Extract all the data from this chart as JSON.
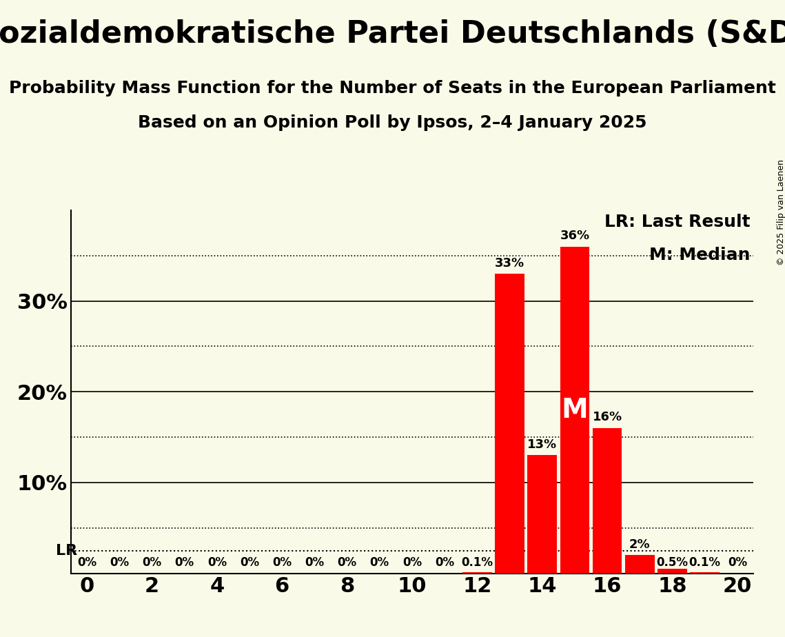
{
  "title": "Sozialdemokratische Partei Deutschlands (S&D)",
  "subtitle1": "Probability Mass Function for the Number of Seats in the European Parliament",
  "subtitle2": "Based on an Opinion Poll by Ipsos, 2–4 January 2025",
  "copyright": "© 2025 Filip van Laenen",
  "background_color": "#FAFAE8",
  "bar_color": "#FF0000",
  "seats": [
    0,
    1,
    2,
    3,
    4,
    5,
    6,
    7,
    8,
    9,
    10,
    11,
    12,
    13,
    14,
    15,
    16,
    17,
    18,
    19,
    20
  ],
  "probabilities": [
    0.0,
    0.0,
    0.0,
    0.0,
    0.0,
    0.0,
    0.0,
    0.0,
    0.0,
    0.0,
    0.0,
    0.0,
    0.1,
    33.0,
    13.0,
    36.0,
    16.0,
    2.0,
    0.5,
    0.1,
    0.0
  ],
  "labels": [
    "0%",
    "0%",
    "0%",
    "0%",
    "0%",
    "0%",
    "0%",
    "0%",
    "0%",
    "0%",
    "0%",
    "0%",
    "0.1%",
    "33%",
    "13%",
    "36%",
    "16%",
    "2%",
    "0.5%",
    "0.1%",
    "0%"
  ],
  "LR_seat": 12,
  "median_seat": 15,
  "ylim": [
    0,
    40
  ],
  "major_yticks": [
    10,
    20,
    30
  ],
  "minor_yticks": [
    5,
    15,
    25,
    35
  ],
  "xlim": [
    -0.5,
    20.5
  ],
  "xticks": [
    0,
    2,
    4,
    6,
    8,
    10,
    12,
    14,
    16,
    18,
    20
  ],
  "LR_line_y": 2.5,
  "title_fontsize": 32,
  "subtitle_fontsize": 18,
  "label_fontsize": 13,
  "axis_fontsize": 22,
  "legend_fontsize": 18,
  "median_fontsize": 28
}
